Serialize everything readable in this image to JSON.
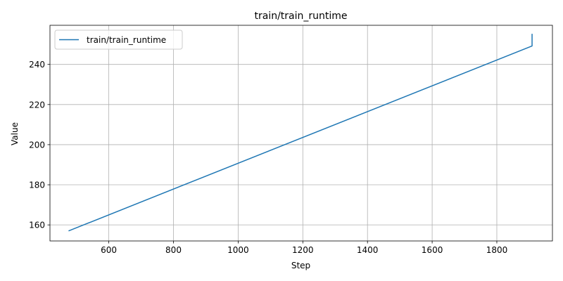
{
  "chart_data": {
    "type": "line",
    "title": "train/train_runtime",
    "xlabel": "Step",
    "ylabel": "Value",
    "xlim": [
      418,
      1972
    ],
    "ylim": [
      152,
      259.5
    ],
    "xticks": [
      600,
      800,
      1000,
      1200,
      1400,
      1600,
      1800
    ],
    "yticks": [
      160,
      180,
      200,
      220,
      240
    ],
    "grid": true,
    "legend_position": "top-left",
    "series": [
      {
        "name": "train/train_runtime",
        "color": "#1f77b4",
        "x": [
          477,
          1909,
          1909,
          1909
        ],
        "y": [
          157.1,
          249.2,
          249.7,
          255.0
        ]
      }
    ]
  }
}
